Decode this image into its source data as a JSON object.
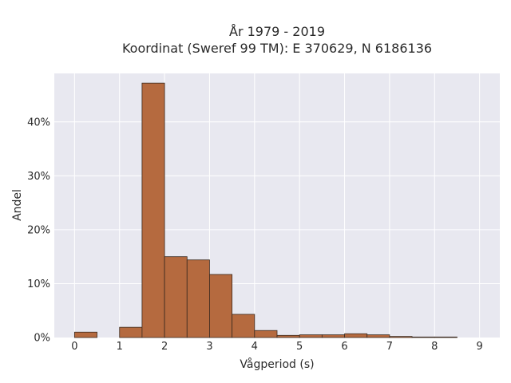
{
  "chart_data": {
    "type": "bar",
    "title_line1": "År 1979 - 2019",
    "title_line2": "Koordinat (Sweref 99 TM): E 370629, N 6186136",
    "xlabel": "Vågperiod (s)",
    "ylabel": "Andel",
    "x_range": [
      -0.45,
      9.45
    ],
    "y_range": [
      0,
      0.49
    ],
    "x_ticks": [
      0,
      1,
      2,
      3,
      4,
      5,
      6,
      7,
      8,
      9
    ],
    "y_ticks": [
      {
        "value": 0,
        "label": "0%"
      },
      {
        "value": 0.1,
        "label": "10%"
      },
      {
        "value": 0.2,
        "label": "20%"
      },
      {
        "value": 0.3,
        "label": "30%"
      },
      {
        "value": 0.4,
        "label": "40%"
      }
    ],
    "bin_width": 0.5,
    "bins": [
      {
        "start": 0.0,
        "value": 0.01
      },
      {
        "start": 0.5,
        "value": 0.0
      },
      {
        "start": 1.0,
        "value": 0.019
      },
      {
        "start": 1.5,
        "value": 0.472
      },
      {
        "start": 2.0,
        "value": 0.15
      },
      {
        "start": 2.5,
        "value": 0.144
      },
      {
        "start": 3.0,
        "value": 0.117
      },
      {
        "start": 3.5,
        "value": 0.043
      },
      {
        "start": 4.0,
        "value": 0.013
      },
      {
        "start": 4.5,
        "value": 0.004
      },
      {
        "start": 5.0,
        "value": 0.005
      },
      {
        "start": 5.5,
        "value": 0.005
      },
      {
        "start": 6.0,
        "value": 0.007
      },
      {
        "start": 6.5,
        "value": 0.005
      },
      {
        "start": 7.0,
        "value": 0.002
      },
      {
        "start": 7.5,
        "value": 0.001
      },
      {
        "start": 8.0,
        "value": 0.001
      }
    ],
    "grid": true,
    "bar_color": "#b56a3f",
    "bar_edge_color": "#3b2a1f",
    "plot_background": "#e8e8f0",
    "grid_color": "#ffffff"
  }
}
